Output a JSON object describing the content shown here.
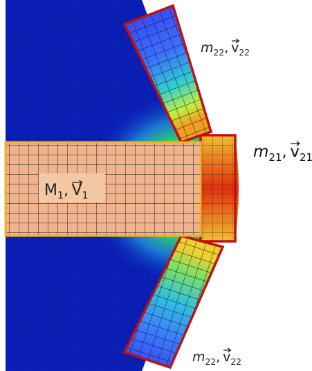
{
  "labels": {
    "top_plate": {
      "mass": "m",
      "mass_index": "22",
      "separator": ",",
      "velocity": "v",
      "velocity_index": "22"
    },
    "middle_plate": {
      "mass": "m",
      "mass_index": "21",
      "separator": ",",
      "velocity": "v",
      "velocity_index": "21"
    },
    "projectile": {
      "mass": "M",
      "mass_index": "1",
      "separator": ",",
      "velocity": "V",
      "velocity_index": "1"
    },
    "bottom_plate": {
      "mass": "m",
      "mass_index": "22",
      "separator": ",",
      "velocity": "v",
      "velocity_index": "22"
    }
  }
}
